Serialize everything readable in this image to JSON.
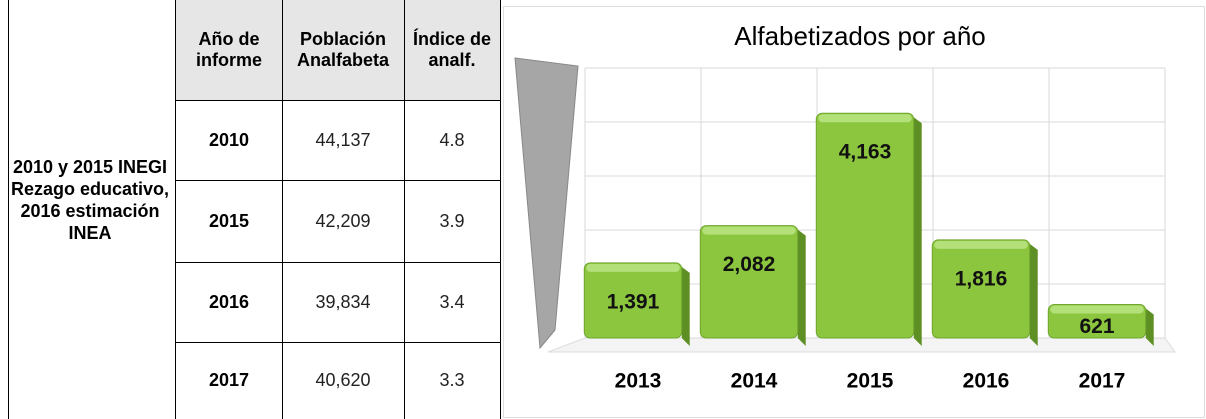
{
  "table": {
    "side_label": "2010 y 2015 INEGI Rezago educativo, 2016 estimación INEA",
    "headers": [
      "Año de informe",
      "Población Analfabeta",
      "Índice de analf."
    ],
    "rows": [
      [
        "2010",
        "44,137",
        "4.8"
      ],
      [
        "2015",
        "42,209",
        "3.9"
      ],
      [
        "2016",
        "39,834",
        "3.4"
      ],
      [
        "2017",
        "40,620",
        "3.3"
      ]
    ]
  },
  "chart_data": {
    "type": "bar",
    "title": "Alfabetizados por año",
    "categories": [
      "2013",
      "2014",
      "2015",
      "2016",
      "2017"
    ],
    "values": [
      1391,
      2082,
      4163,
      1816,
      621
    ],
    "value_labels": [
      "1,391",
      "2,082",
      "4,163",
      "1,816",
      "621"
    ],
    "color": "#8cc63f",
    "ylim": [
      0,
      5000
    ],
    "yticks": [
      0,
      1000,
      2000,
      3000,
      4000,
      5000
    ],
    "grid": true
  }
}
